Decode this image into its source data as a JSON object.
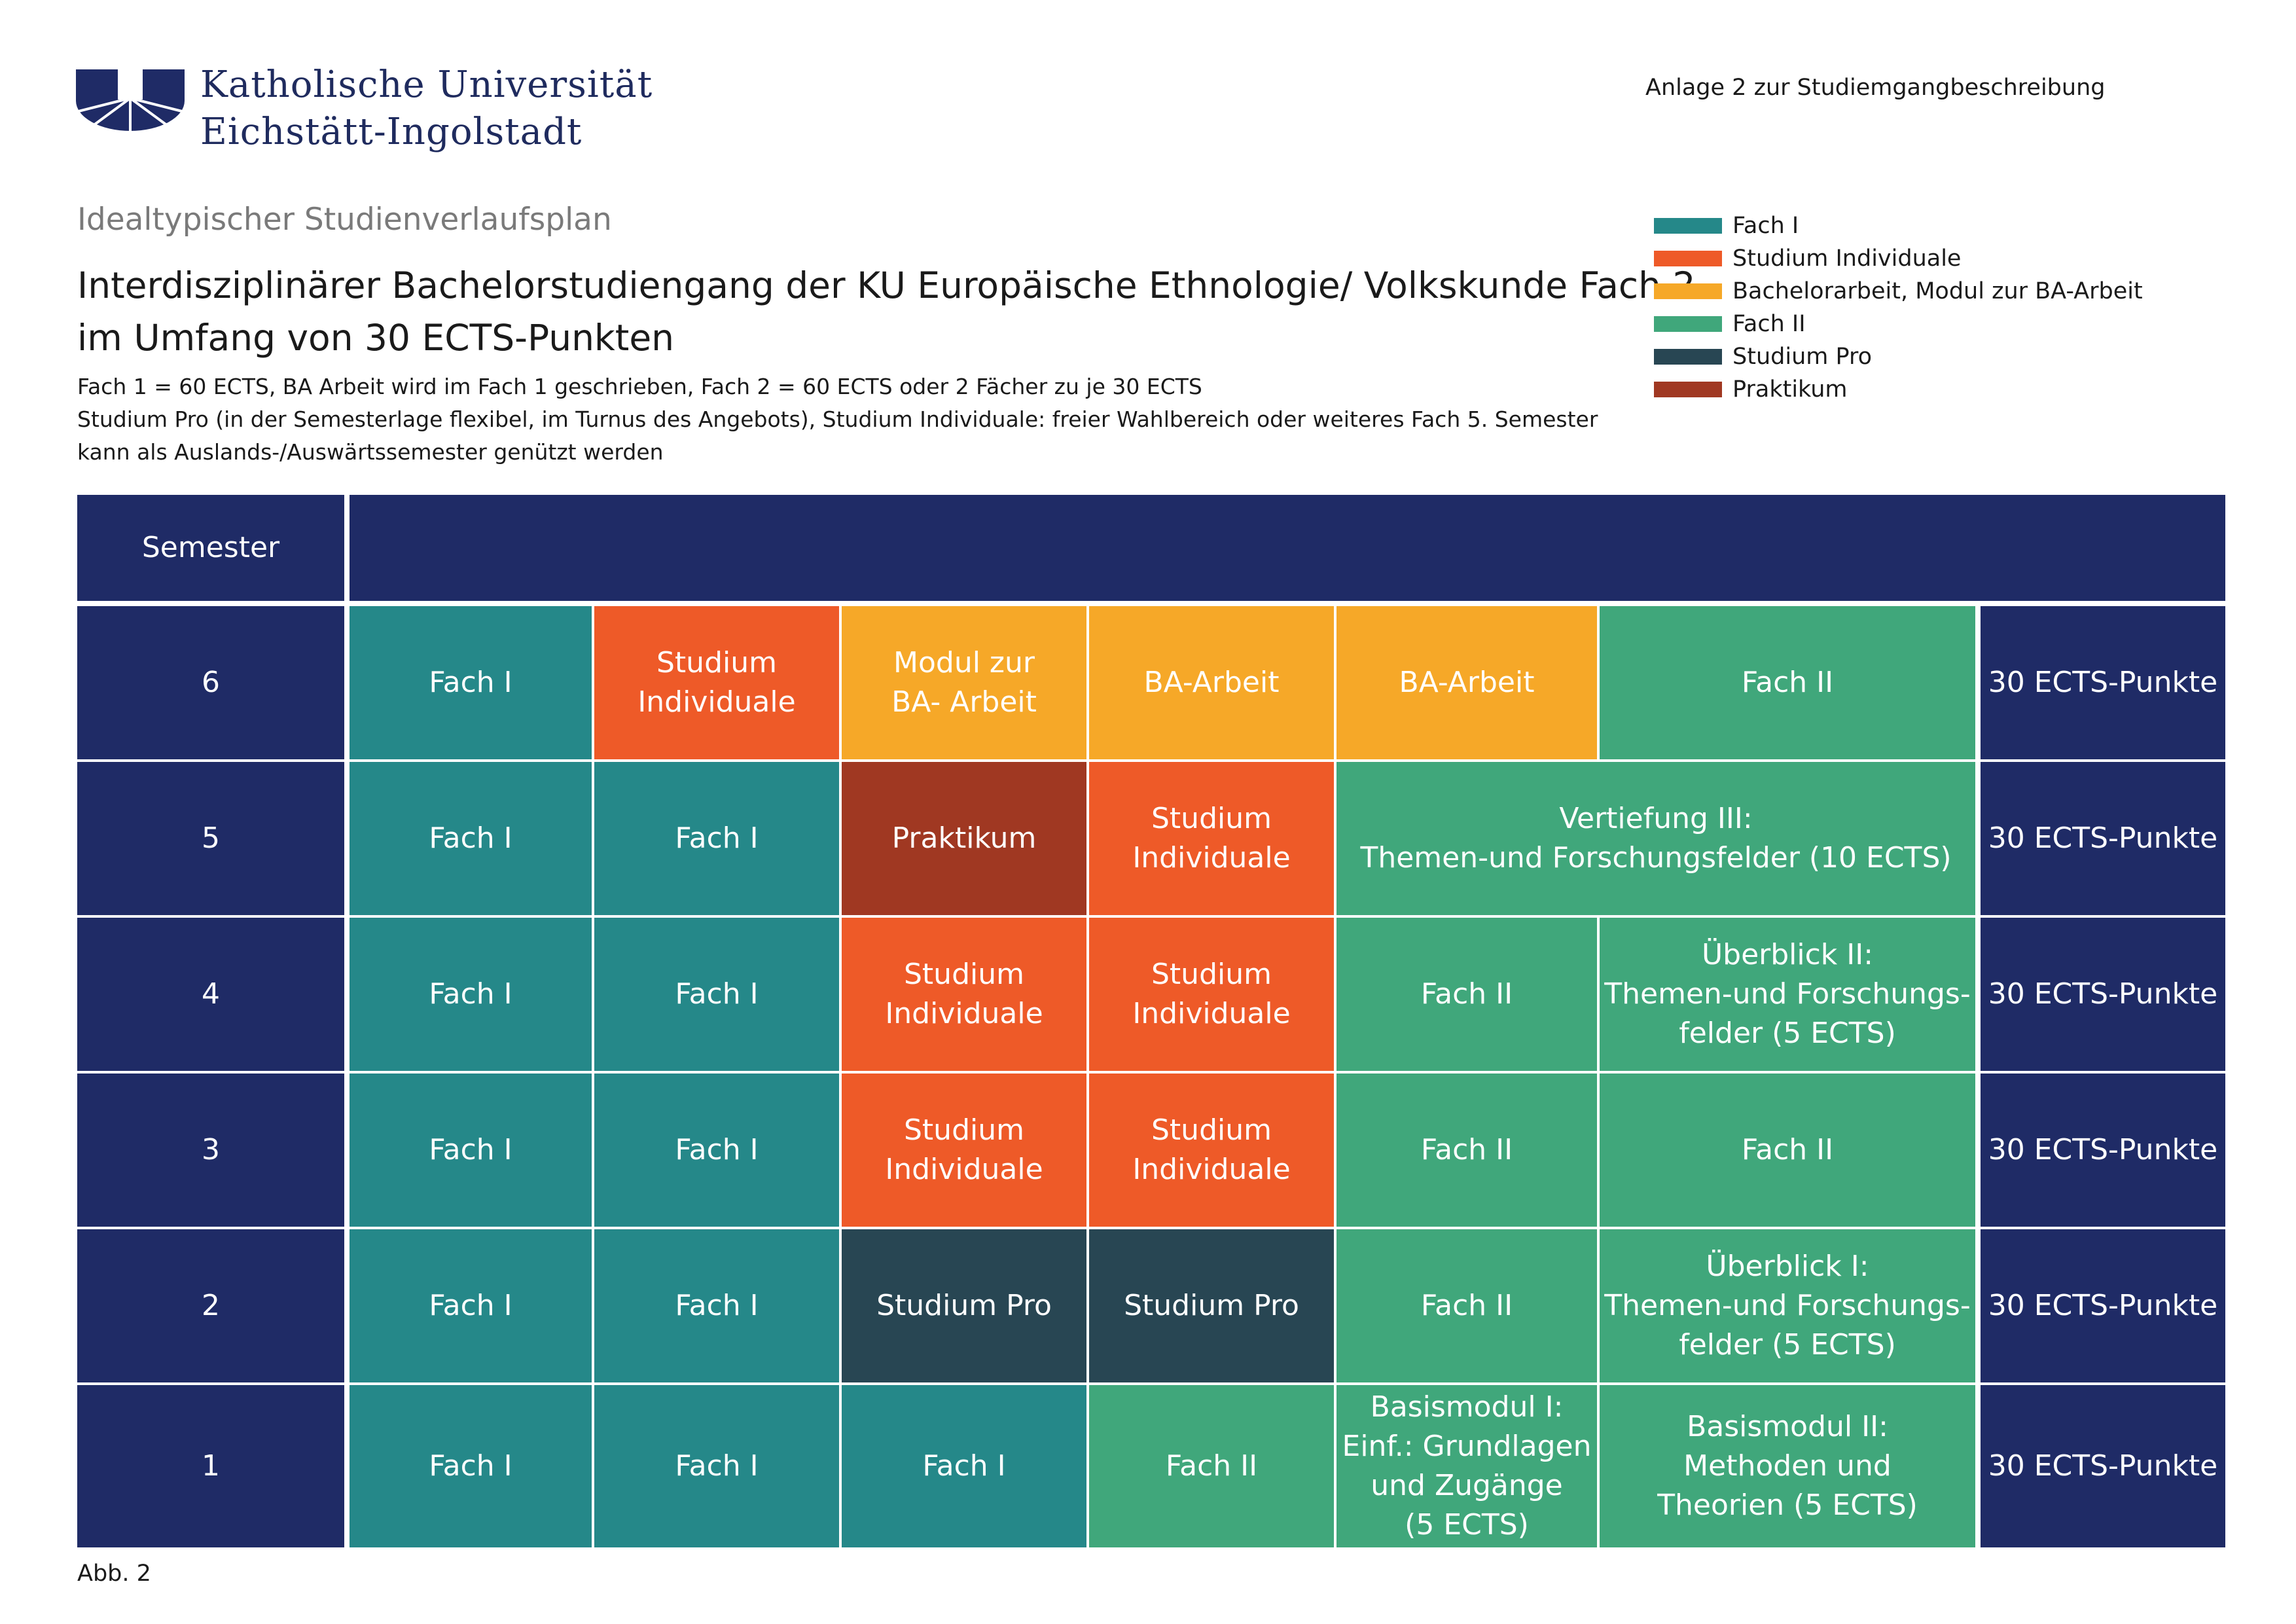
{
  "header": {
    "university_line1": "Katholische Universität",
    "university_line2": "Eichstätt-Ingolstadt",
    "annex": "Anlage 2 zur Studiemgangbeschreibung"
  },
  "doc": {
    "kicker": "Idealtypischer Studienverlaufsplan",
    "title_line1": "Interdisziplinärer Bachelorstudiengang der KU Europäische Ethnologie/ Volkskunde Fach 2",
    "title_line2": "im Umfang von 30 ECTS-Punkten",
    "note_line1": "Fach 1 = 60 ECTS, BA Arbeit wird im Fach 1 geschrieben, Fach 2 = 60 ECTS oder 2 Fächer zu je 30 ECTS",
    "note_line2": "Studium Pro (in der Semesterlage flexibel, im Turnus des Angebots), Studium Individuale: freier Wahlbereich oder weiteres Fach 5. Semester",
    "note_line3": "kann als Auslands-/Auswärtssemester genützt werden"
  },
  "legend": [
    {
      "label": "Fach I",
      "color": "#258889"
    },
    {
      "label": "Studium Individuale",
      "color": "#ee5a28"
    },
    {
      "label": "Bachelorarbeit, Modul zur BA-Arbeit",
      "color": "#f6a828"
    },
    {
      "label": "Fach II",
      "color": "#40a77b"
    },
    {
      "label": "Studium Pro",
      "color": "#284653"
    },
    {
      "label": "Praktikum",
      "color": "#a03822"
    }
  ],
  "table": {
    "header_label": "Semester",
    "ects_label": "30 ECTS-Punkte",
    "rows": [
      {
        "semester": "6",
        "cells": [
          "Fach I",
          "Studium\nIndividuale",
          "Modul zur\nBA- Arbeit",
          "BA-Arbeit",
          "BA-Arbeit",
          "Fach II"
        ]
      },
      {
        "semester": "5",
        "cells": [
          "Fach I",
          "Fach I",
          "Praktikum",
          "Studium\nIndividuale",
          "Vertiefung III:\nThemen-und Forschungsfelder (10 ECTS)"
        ]
      },
      {
        "semester": "4",
        "cells": [
          "Fach I",
          "Fach I",
          "Studium\nIndividuale",
          "Studium\nIndividuale",
          "Fach II",
          "Überblick II:\nThemen-und Forschungs-\nfelder (5 ECTS)"
        ]
      },
      {
        "semester": "3",
        "cells": [
          "Fach I",
          "Fach I",
          "Studium\nIndividuale",
          "Studium\nIndividuale",
          "Fach II",
          "Fach II"
        ]
      },
      {
        "semester": "2",
        "cells": [
          "Fach I",
          "Fach I",
          "Studium Pro",
          "Studium Pro",
          "Fach II",
          "Überblick I:\nThemen-und Forschungs-\nfelder (5 ECTS)"
        ]
      },
      {
        "semester": "1",
        "cells": [
          "Fach I",
          "Fach I",
          "Fach I",
          "Fach II",
          "Basismodul I:\nEinf.: Grundlagen\nund Zugänge\n(5 ECTS)",
          "Basismodul II:\nMethoden und\nTheorien (5 ECTS)"
        ]
      }
    ]
  },
  "footer": {
    "caption": "Abb. 2"
  }
}
